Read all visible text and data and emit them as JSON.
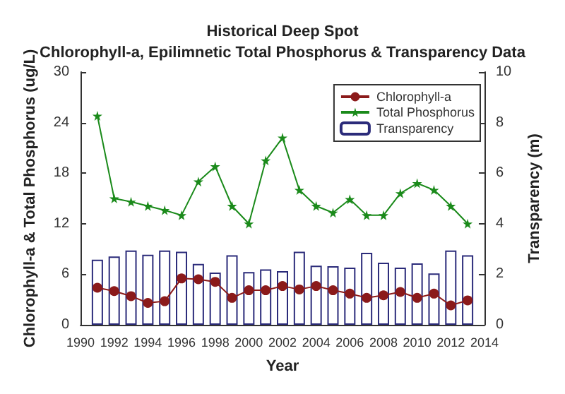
{
  "chart_data": {
    "type": "line",
    "title": "Historical Deep Spot",
    "subtitle": "Chlorophyll-a, Epilimnetic Total Phosphorus & Transparency Data",
    "xlabel": "Year",
    "ylabel": "Chlorophyll-a & Total Phosphorus (ug/L)",
    "y2label": "Transparency (m)",
    "x": [
      1991,
      1992,
      1993,
      1994,
      1995,
      1996,
      1997,
      1998,
      1999,
      2000,
      2001,
      2002,
      2003,
      2004,
      2005,
      2006,
      2007,
      2008,
      2009,
      2010,
      2011,
      2012,
      2013
    ],
    "series": [
      {
        "name": "Chlorophyll-a",
        "color": "#8b1a1a",
        "marker": "circle",
        "values": [
          4.4,
          4.0,
          3.4,
          2.6,
          2.8,
          5.5,
          5.4,
          5.1,
          3.2,
          4.1,
          4.1,
          4.6,
          4.2,
          4.6,
          4.1,
          3.7,
          3.2,
          3.5,
          3.9,
          3.2,
          3.7,
          2.3,
          2.9
        ]
      },
      {
        "name": "Total Phosphorus",
        "color": "#1a8a1a",
        "marker": "star",
        "values": [
          24.8,
          15.0,
          14.6,
          14.1,
          13.6,
          13.0,
          17.0,
          18.8,
          14.1,
          12.0,
          19.5,
          22.2,
          16.0,
          14.1,
          13.3,
          14.9,
          13.0,
          13.0,
          15.6,
          16.8,
          16.0,
          14.1,
          12.0
        ]
      },
      {
        "name": "Transparency",
        "type": "bar",
        "axis": "y2",
        "color": "#2b2b7a",
        "values": [
          2.58,
          2.7,
          2.94,
          2.77,
          2.94,
          2.89,
          2.41,
          2.07,
          2.75,
          2.09,
          2.19,
          2.12,
          2.89,
          2.34,
          2.32,
          2.26,
          2.85,
          2.46,
          2.26,
          2.43,
          2.03,
          2.94,
          2.75
        ]
      }
    ],
    "xlim": [
      1990,
      2014
    ],
    "xticks": [
      1990,
      1992,
      1994,
      1996,
      1998,
      2000,
      2002,
      2004,
      2006,
      2008,
      2010,
      2012,
      2014
    ],
    "ylim": [
      0,
      30
    ],
    "yticks": [
      0,
      6,
      12,
      18,
      24,
      30
    ],
    "y2lim": [
      0,
      10
    ],
    "y2ticks": [
      0,
      2,
      4,
      6,
      8,
      10
    ],
    "grid": false,
    "legend": "top right"
  }
}
